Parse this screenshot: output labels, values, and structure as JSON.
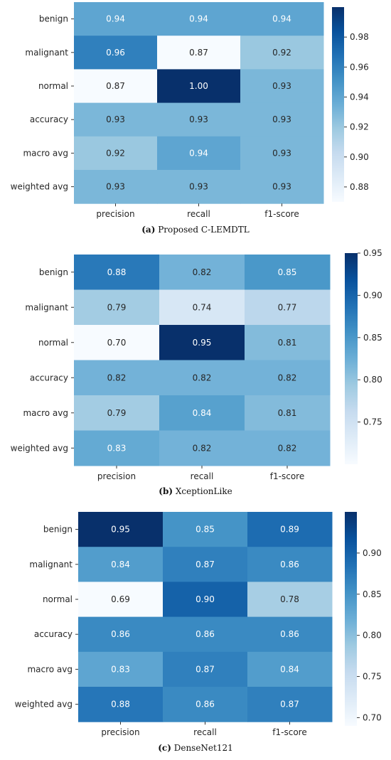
{
  "chart_data": [
    {
      "type": "heatmap",
      "caption_label": "(a)",
      "caption_text": "Proposed C-LEMDTL",
      "columns": [
        "precision",
        "recall",
        "f1-score"
      ],
      "rows": [
        "benign",
        "malignant",
        "normal",
        "accuracy",
        "macro avg",
        "weighted avg"
      ],
      "values": [
        [
          0.94,
          0.94,
          0.94
        ],
        [
          0.96,
          0.87,
          0.92
        ],
        [
          0.87,
          1.0,
          0.93
        ],
        [
          0.93,
          0.93,
          0.93
        ],
        [
          0.92,
          0.94,
          0.93
        ],
        [
          0.93,
          0.93,
          0.93
        ]
      ],
      "colorbar": {
        "min": 0.87,
        "max": 1.0,
        "ticks": [
          "0.98",
          "0.96",
          "0.94",
          "0.92",
          "0.90",
          "0.88"
        ]
      },
      "colormap": "Blues"
    },
    {
      "type": "heatmap",
      "caption_label": "(b)",
      "caption_text": "XceptionLike",
      "columns": [
        "precision",
        "recall",
        "f1-score"
      ],
      "rows": [
        "benign",
        "malignant",
        "normal",
        "accuracy",
        "macro avg",
        "weighted avg"
      ],
      "values": [
        [
          0.88,
          0.82,
          0.85
        ],
        [
          0.79,
          0.74,
          0.77
        ],
        [
          0.7,
          0.95,
          0.81
        ],
        [
          0.82,
          0.82,
          0.82
        ],
        [
          0.79,
          0.84,
          0.81
        ],
        [
          0.83,
          0.82,
          0.82
        ]
      ],
      "colorbar": {
        "min": 0.7,
        "max": 0.95,
        "ticks": [
          "0.95",
          "0.90",
          "0.85",
          "0.80",
          "0.75"
        ]
      },
      "colormap": "Blues"
    },
    {
      "type": "heatmap",
      "caption_label": "(c)",
      "caption_text": "DenseNet121",
      "columns": [
        "precision",
        "recall",
        "f1-score"
      ],
      "rows": [
        "benign",
        "malignant",
        "normal",
        "accuracy",
        "macro avg",
        "weighted avg"
      ],
      "values": [
        [
          0.95,
          0.85,
          0.89
        ],
        [
          0.84,
          0.87,
          0.86
        ],
        [
          0.69,
          0.9,
          0.78
        ],
        [
          0.86,
          0.86,
          0.86
        ],
        [
          0.83,
          0.87,
          0.84
        ],
        [
          0.88,
          0.86,
          0.87
        ]
      ],
      "colorbar": {
        "min": 0.69,
        "max": 0.95,
        "ticks": [
          "0.90",
          "0.85",
          "0.80",
          "0.75",
          "0.70"
        ]
      },
      "colormap": "Blues"
    }
  ]
}
